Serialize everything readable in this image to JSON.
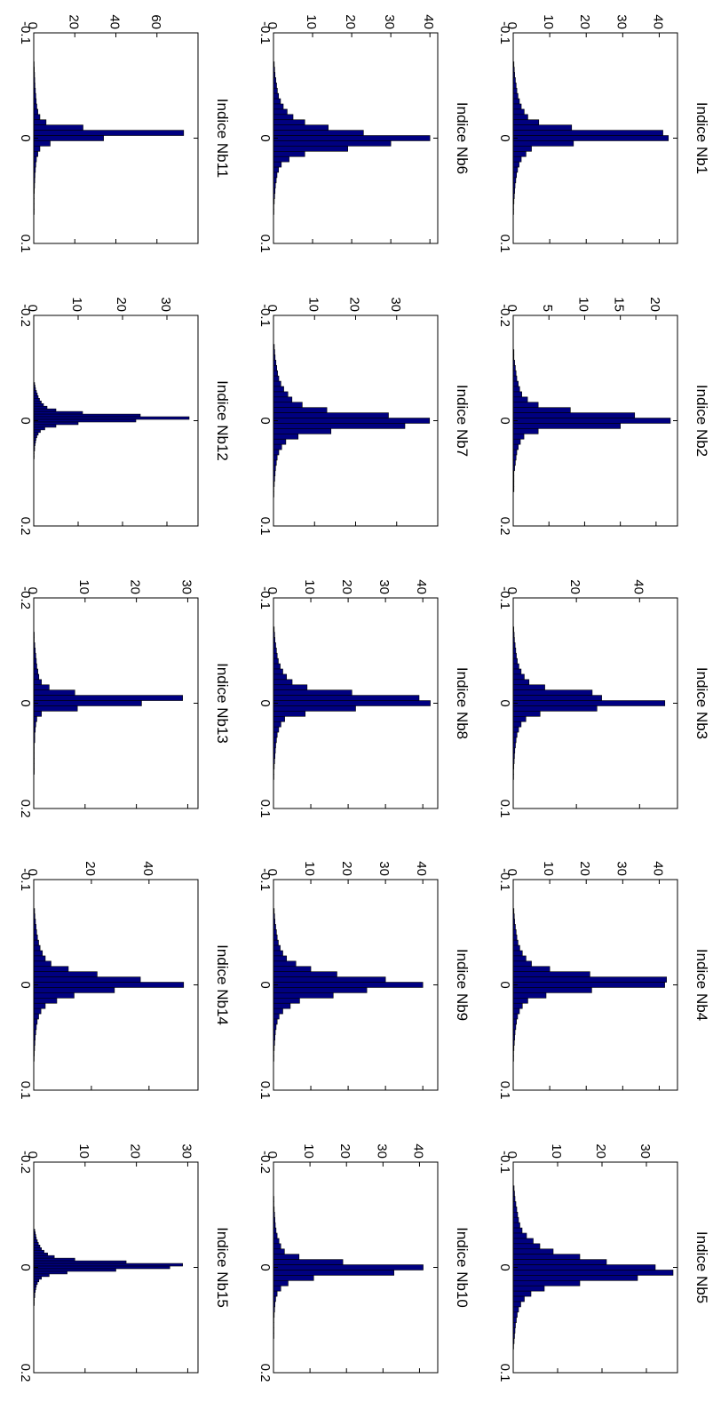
{
  "chart_data": [
    {
      "type": "bar",
      "title": "Indice Nb1",
      "xlim": [
        -0.1,
        0.1
      ],
      "xticks": [
        "-0.1",
        "0",
        "0.1"
      ],
      "ylim": [
        0,
        45
      ],
      "yticks": [
        "0",
        "10",
        "20",
        "30",
        "40"
      ],
      "bin_width": 0.005,
      "x": [
        -0.07,
        -0.065,
        -0.06,
        -0.055,
        -0.05,
        -0.045,
        -0.04,
        -0.035,
        -0.03,
        -0.025,
        -0.02,
        -0.015,
        -0.01,
        -0.005,
        0,
        0.005,
        0.01,
        0.015,
        0.02,
        0.025,
        0.03,
        0.035,
        0.04,
        0.045,
        0.05,
        0.055,
        0.06,
        0.065,
        0.07
      ],
      "values": [
        0.2,
        0.3,
        0.4,
        0.6,
        0.8,
        1.0,
        1.3,
        1.7,
        2.2,
        3.0,
        4.0,
        7.0,
        16.0,
        41.0,
        42.5,
        16.5,
        5.0,
        3.5,
        2.2,
        1.6,
        1.2,
        0.9,
        0.7,
        0.5,
        0.4,
        0.3,
        0.2,
        0.1,
        0.1
      ]
    },
    {
      "type": "bar",
      "title": "Indice Nb2",
      "xlim": [
        -0.2,
        0.2
      ],
      "xticks": [
        "-0.2",
        "0",
        "0.2"
      ],
      "ylim": [
        0,
        23
      ],
      "yticks": [
        "0",
        "5",
        "10",
        "15",
        "20"
      ],
      "bin_width": 0.01,
      "x": [
        -0.13,
        -0.12,
        -0.11,
        -0.1,
        -0.09,
        -0.08,
        -0.07,
        -0.06,
        -0.05,
        -0.04,
        -0.03,
        -0.02,
        -0.01,
        0,
        0.01,
        0.02,
        0.03,
        0.04,
        0.05,
        0.06,
        0.07,
        0.08,
        0.09,
        0.1,
        0.11,
        0.12,
        0.13
      ],
      "values": [
        0.1,
        0.1,
        0.2,
        0.3,
        0.4,
        0.5,
        0.7,
        0.9,
        1.2,
        2.0,
        3.5,
        8.0,
        17.0,
        22.0,
        15.0,
        3.5,
        1.5,
        1.0,
        0.7,
        0.5,
        0.4,
        0.3,
        0.2,
        0.1,
        0.1,
        0.1,
        0.1
      ]
    },
    {
      "type": "bar",
      "title": "Indice Nb3",
      "xlim": [
        -0.1,
        0.1
      ],
      "xticks": [
        "-0.1",
        "0",
        "0.1"
      ],
      "ylim": [
        0,
        52
      ],
      "yticks": [
        "0",
        "20",
        "40"
      ],
      "bin_width": 0.005,
      "x": [
        -0.07,
        -0.065,
        -0.06,
        -0.055,
        -0.05,
        -0.045,
        -0.04,
        -0.035,
        -0.03,
        -0.025,
        -0.02,
        -0.015,
        -0.01,
        -0.005,
        0,
        0.005,
        0.01,
        0.015,
        0.02,
        0.025,
        0.03,
        0.035,
        0.04,
        0.045,
        0.05,
        0.055,
        0.06,
        0.065,
        0.07
      ],
      "values": [
        0.2,
        0.3,
        0.4,
        0.6,
        0.8,
        1.0,
        1.3,
        1.8,
        2.5,
        3.5,
        5.0,
        10.0,
        25.0,
        28.0,
        48.0,
        26.5,
        8.5,
        4.0,
        2.5,
        1.7,
        1.2,
        0.9,
        0.7,
        0.5,
        0.4,
        0.3,
        0.2,
        0.1,
        0.1
      ]
    },
    {
      "type": "bar",
      "title": "Indice Nb4",
      "xlim": [
        -0.1,
        0.1
      ],
      "xticks": [
        "-0.1",
        "0",
        "0.1"
      ],
      "ylim": [
        0,
        45
      ],
      "yticks": [
        "0",
        "10",
        "20",
        "30",
        "40"
      ],
      "bin_width": 0.005,
      "x": [
        -0.07,
        -0.065,
        -0.06,
        -0.055,
        -0.05,
        -0.045,
        -0.04,
        -0.035,
        -0.03,
        -0.025,
        -0.02,
        -0.015,
        -0.01,
        -0.005,
        0,
        0.005,
        0.01,
        0.015,
        0.02,
        0.025,
        0.03,
        0.035,
        0.04,
        0.045,
        0.05,
        0.055,
        0.06,
        0.065,
        0.07
      ],
      "values": [
        0.2,
        0.3,
        0.4,
        0.6,
        0.8,
        1.0,
        1.3,
        1.8,
        2.5,
        3.5,
        5.0,
        10.0,
        21.0,
        42.0,
        41.5,
        21.5,
        9.0,
        4.0,
        2.5,
        1.7,
        1.2,
        0.9,
        0.7,
        0.5,
        0.4,
        0.3,
        0.2,
        0.1,
        0.1
      ]
    },
    {
      "type": "bar",
      "title": "Indice Nb5",
      "xlim": [
        -0.1,
        0.1
      ],
      "xticks": [
        "-0.1",
        "0",
        "0.1"
      ],
      "ylim": [
        0,
        37
      ],
      "yticks": [
        "0",
        "10",
        "20",
        "30"
      ],
      "bin_width": 0.005,
      "x": [
        -0.075,
        -0.07,
        -0.065,
        -0.06,
        -0.055,
        -0.05,
        -0.045,
        -0.04,
        -0.035,
        -0.03,
        -0.025,
        -0.02,
        -0.015,
        -0.01,
        -0.005,
        0,
        0.005,
        0.01,
        0.015,
        0.02,
        0.025,
        0.03,
        0.035,
        0.04,
        0.045,
        0.05,
        0.055,
        0.06,
        0.065,
        0.07,
        0.075
      ],
      "values": [
        0.2,
        0.3,
        0.4,
        0.6,
        0.8,
        1.0,
        1.2,
        1.5,
        2.0,
        3.0,
        4.5,
        6.0,
        9.0,
        15.0,
        21.0,
        32.0,
        36.0,
        28.0,
        15.0,
        7.0,
        4.0,
        2.5,
        1.7,
        1.2,
        0.9,
        0.7,
        0.5,
        0.4,
        0.3,
        0.2,
        0.1
      ]
    },
    {
      "type": "bar",
      "title": "Indice Nb6",
      "xlim": [
        -0.1,
        0.1
      ],
      "xticks": [
        "-0.1",
        "0",
        "0.1"
      ],
      "ylim": [
        0,
        42
      ],
      "yticks": [
        "0",
        "10",
        "20",
        "30",
        "40"
      ],
      "bin_width": 0.005,
      "x": [
        -0.07,
        -0.065,
        -0.06,
        -0.055,
        -0.05,
        -0.045,
        -0.04,
        -0.035,
        -0.03,
        -0.025,
        -0.02,
        -0.015,
        -0.01,
        -0.005,
        0,
        0.005,
        0.01,
        0.015,
        0.02,
        0.025,
        0.03,
        0.035,
        0.04,
        0.045,
        0.05,
        0.055,
        0.06,
        0.065,
        0.07
      ],
      "values": [
        0.2,
        0.3,
        0.4,
        0.6,
        0.8,
        1.0,
        1.3,
        1.8,
        2.5,
        3.5,
        5.0,
        8.0,
        14.0,
        23.0,
        40.0,
        30.0,
        19.0,
        8.0,
        4.0,
        2.0,
        1.3,
        0.9,
        0.7,
        0.5,
        0.4,
        0.3,
        0.2,
        0.1,
        0.1
      ]
    },
    {
      "type": "bar",
      "title": "Indice Nb7",
      "xlim": [
        -0.1,
        0.1
      ],
      "xticks": [
        "-0.1",
        "0",
        "0.1"
      ],
      "ylim": [
        0,
        40
      ],
      "yticks": [
        "0",
        "10",
        "20",
        "30"
      ],
      "bin_width": 0.005,
      "x": [
        -0.07,
        -0.065,
        -0.06,
        -0.055,
        -0.05,
        -0.045,
        -0.04,
        -0.035,
        -0.03,
        -0.025,
        -0.02,
        -0.015,
        -0.01,
        -0.005,
        0,
        0.005,
        0.01,
        0.015,
        0.02,
        0.025,
        0.03,
        0.035,
        0.04,
        0.045,
        0.05,
        0.055,
        0.06,
        0.065,
        0.07
      ],
      "values": [
        0.2,
        0.3,
        0.4,
        0.6,
        0.8,
        1.0,
        1.3,
        1.8,
        2.5,
        3.5,
        4.5,
        7.0,
        13.0,
        28.0,
        38.0,
        32.0,
        14.0,
        6.0,
        3.0,
        2.0,
        1.3,
        0.9,
        0.7,
        0.5,
        0.4,
        0.3,
        0.2,
        0.1,
        0.1
      ]
    },
    {
      "type": "bar",
      "title": "Indice Nb8",
      "xlim": [
        -0.1,
        0.1
      ],
      "xticks": [
        "-0.1",
        "0",
        "0.1"
      ],
      "ylim": [
        0,
        44
      ],
      "yticks": [
        "0",
        "10",
        "20",
        "30",
        "40"
      ],
      "bin_width": 0.005,
      "x": [
        -0.07,
        -0.065,
        -0.06,
        -0.055,
        -0.05,
        -0.045,
        -0.04,
        -0.035,
        -0.03,
        -0.025,
        -0.02,
        -0.015,
        -0.01,
        -0.005,
        0,
        0.005,
        0.01,
        0.015,
        0.02,
        0.025,
        0.03,
        0.035,
        0.04,
        0.045,
        0.05,
        0.055,
        0.06,
        0.065,
        0.07
      ],
      "values": [
        0.2,
        0.3,
        0.4,
        0.6,
        0.8,
        1.0,
        1.3,
        1.8,
        2.5,
        3.5,
        5.0,
        9.0,
        21.0,
        39.0,
        42.0,
        22.0,
        8.5,
        3.0,
        2.0,
        1.4,
        1.0,
        0.8,
        0.6,
        0.5,
        0.4,
        0.3,
        0.2,
        0.1,
        0.1
      ]
    },
    {
      "type": "bar",
      "title": "Indice Nb9",
      "xlim": [
        -0.1,
        0.1
      ],
      "xticks": [
        "-0.1",
        "0",
        "0.1"
      ],
      "ylim": [
        0,
        44
      ],
      "yticks": [
        "0",
        "10",
        "20",
        "30",
        "40"
      ],
      "bin_width": 0.005,
      "x": [
        -0.07,
        -0.065,
        -0.06,
        -0.055,
        -0.05,
        -0.045,
        -0.04,
        -0.035,
        -0.03,
        -0.025,
        -0.02,
        -0.015,
        -0.01,
        -0.005,
        0,
        0.005,
        0.01,
        0.015,
        0.02,
        0.025,
        0.03,
        0.035,
        0.04,
        0.045,
        0.05,
        0.055,
        0.06,
        0.065,
        0.07
      ],
      "values": [
        0.2,
        0.3,
        0.4,
        0.6,
        0.8,
        1.0,
        1.3,
        1.8,
        2.5,
        3.5,
        6.0,
        10.0,
        17.0,
        30.0,
        40.0,
        25.0,
        16.0,
        7.0,
        4.5,
        2.5,
        1.5,
        1.0,
        0.7,
        0.5,
        0.4,
        0.3,
        0.2,
        0.1,
        0.1
      ]
    },
    {
      "type": "bar",
      "title": "Indice Nb10",
      "xlim": [
        -0.2,
        0.2
      ],
      "xticks": [
        "-0.2",
        "0",
        "0.2"
      ],
      "ylim": [
        0,
        45
      ],
      "yticks": [
        "0",
        "10",
        "20",
        "30",
        "40"
      ],
      "bin_width": 0.01,
      "x": [
        -0.13,
        -0.12,
        -0.11,
        -0.1,
        -0.09,
        -0.08,
        -0.07,
        -0.06,
        -0.05,
        -0.04,
        -0.03,
        -0.02,
        -0.01,
        0,
        0.01,
        0.02,
        0.03,
        0.04,
        0.05,
        0.06,
        0.07,
        0.08,
        0.09,
        0.1,
        0.11,
        0.12,
        0.13
      ],
      "values": [
        0.1,
        0.1,
        0.2,
        0.3,
        0.4,
        0.5,
        0.7,
        1.0,
        1.5,
        2.0,
        3.0,
        7.0,
        19.0,
        41.0,
        33.0,
        11.0,
        4.0,
        2.0,
        1.0,
        0.6,
        0.4,
        0.3,
        0.2,
        0.1,
        0.1,
        0.1,
        0.1
      ]
    },
    {
      "type": "bar",
      "title": "Indice Nb11",
      "xlim": [
        -0.1,
        0.1
      ],
      "xticks": [
        "-0.1",
        "0",
        "0.1"
      ],
      "ylim": [
        0,
        80
      ],
      "yticks": [
        "0",
        "20",
        "40",
        "60"
      ],
      "bin_width": 0.005,
      "x": [
        -0.07,
        -0.065,
        -0.06,
        -0.055,
        -0.05,
        -0.045,
        -0.04,
        -0.035,
        -0.03,
        -0.025,
        -0.02,
        -0.015,
        -0.01,
        -0.005,
        0,
        0.005,
        0.01,
        0.015,
        0.02,
        0.025,
        0.03,
        0.035,
        0.04,
        0.045,
        0.05,
        0.055,
        0.06,
        0.065,
        0.07
      ],
      "values": [
        0.2,
        0.3,
        0.4,
        0.5,
        0.6,
        0.8,
        1.0,
        1.2,
        1.5,
        2.0,
        3.0,
        6.0,
        24.0,
        73.0,
        34.0,
        8.0,
        3.0,
        2.0,
        1.3,
        1.0,
        0.8,
        0.6,
        0.5,
        0.4,
        0.3,
        0.2,
        0.1,
        0.1,
        0.1
      ]
    },
    {
      "type": "bar",
      "title": "Indice Nb12",
      "xlim": [
        -0.2,
        0.2
      ],
      "xticks": [
        "-0.2",
        "0",
        "0.2"
      ],
      "ylim": [
        0,
        37
      ],
      "yticks": [
        "0",
        "10",
        "20",
        "30"
      ],
      "bin_width": 0.005,
      "x": [
        -0.07,
        -0.065,
        -0.06,
        -0.055,
        -0.05,
        -0.045,
        -0.04,
        -0.035,
        -0.03,
        -0.025,
        -0.02,
        -0.015,
        -0.01,
        -0.005,
        0,
        0.005,
        0.01,
        0.015,
        0.02,
        0.025,
        0.03,
        0.035,
        0.04,
        0.045,
        0.05,
        0.055,
        0.06,
        0.065,
        0.07
      ],
      "values": [
        0.2,
        0.3,
        0.4,
        0.6,
        0.8,
        1.0,
        1.3,
        1.7,
        2.2,
        3.0,
        5.0,
        11.0,
        24.0,
        35.0,
        23.0,
        10.0,
        5.0,
        2.5,
        1.5,
        1.0,
        0.7,
        0.5,
        0.4,
        0.3,
        0.2,
        0.2,
        0.1,
        0.1,
        0.1
      ]
    },
    {
      "type": "bar",
      "title": "Indice Nb13",
      "xlim": [
        -0.2,
        0.2
      ],
      "xticks": [
        "-0.2",
        "0",
        "0.2"
      ],
      "ylim": [
        0,
        32
      ],
      "yticks": [
        "0",
        "10",
        "20",
        "30"
      ],
      "bin_width": 0.01,
      "x": [
        -0.13,
        -0.12,
        -0.11,
        -0.1,
        -0.09,
        -0.08,
        -0.07,
        -0.06,
        -0.05,
        -0.04,
        -0.03,
        -0.02,
        -0.01,
        0,
        0.01,
        0.02,
        0.03,
        0.04,
        0.05,
        0.06,
        0.07,
        0.08,
        0.09,
        0.1,
        0.11,
        0.12,
        0.13
      ],
      "values": [
        0.1,
        0.1,
        0.2,
        0.3,
        0.4,
        0.5,
        0.6,
        0.8,
        1.0,
        1.5,
        3.0,
        8.0,
        29.0,
        21.0,
        8.5,
        1.5,
        0.6,
        0.4,
        0.3,
        0.2,
        0.2,
        0.1,
        0.1,
        0.1,
        0.1,
        0.1,
        0.1
      ]
    },
    {
      "type": "bar",
      "title": "Indice Nb14",
      "xlim": [
        -0.1,
        0.1
      ],
      "xticks": [
        "-0.1",
        "0",
        "0.1"
      ],
      "ylim": [
        0,
        57
      ],
      "yticks": [
        "0",
        "20",
        "40"
      ],
      "bin_width": 0.005,
      "x": [
        -0.07,
        -0.065,
        -0.06,
        -0.055,
        -0.05,
        -0.045,
        -0.04,
        -0.035,
        -0.03,
        -0.025,
        -0.02,
        -0.015,
        -0.01,
        -0.005,
        0,
        0.005,
        0.01,
        0.015,
        0.02,
        0.025,
        0.03,
        0.035,
        0.04,
        0.045,
        0.05,
        0.055,
        0.06,
        0.065,
        0.07
      ],
      "values": [
        0.3,
        0.4,
        0.6,
        0.8,
        1.0,
        1.3,
        1.7,
        2.2,
        3.0,
        4.0,
        6.0,
        12.0,
        22.0,
        37.0,
        52.0,
        28.0,
        14.0,
        8.0,
        4.0,
        2.5,
        1.7,
        1.2,
        0.9,
        0.7,
        0.5,
        0.4,
        0.3,
        0.2,
        0.1
      ]
    },
    {
      "type": "bar",
      "title": "Indice Nb15",
      "xlim": [
        -0.2,
        0.2
      ],
      "xticks": [
        "-0.2",
        "0",
        "0.2"
      ],
      "ylim": [
        0,
        32
      ],
      "yticks": [
        "0",
        "10",
        "20",
        "30"
      ],
      "bin_width": 0.005,
      "x": [
        -0.07,
        -0.065,
        -0.06,
        -0.055,
        -0.05,
        -0.045,
        -0.04,
        -0.035,
        -0.03,
        -0.025,
        -0.02,
        -0.015,
        -0.01,
        -0.005,
        0,
        0.005,
        0.01,
        0.015,
        0.02,
        0.025,
        0.03,
        0.035,
        0.04,
        0.045,
        0.05,
        0.055,
        0.06,
        0.065,
        0.07
      ],
      "values": [
        0.2,
        0.3,
        0.4,
        0.5,
        0.7,
        0.9,
        1.2,
        1.5,
        2.0,
        2.7,
        4.0,
        8.0,
        18.0,
        29.0,
        26.5,
        16.0,
        6.5,
        3.0,
        1.5,
        1.0,
        0.7,
        0.5,
        0.4,
        0.3,
        0.2,
        0.2,
        0.1,
        0.1,
        0.1
      ]
    }
  ]
}
